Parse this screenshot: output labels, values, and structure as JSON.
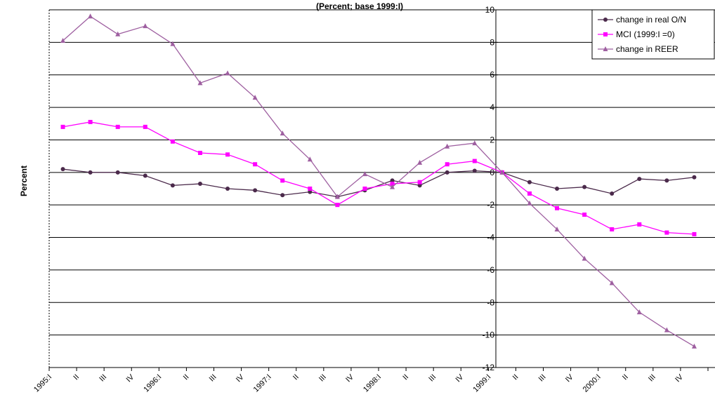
{
  "chart_data": {
    "type": "line",
    "title": "(Percent; base 1999:I)",
    "xlabel": "",
    "ylabel": "Percent",
    "ylim": [
      -12,
      10
    ],
    "yticks": [
      -12,
      -10,
      -8,
      -6,
      -4,
      -2,
      0,
      2,
      4,
      6,
      8,
      10
    ],
    "grid": true,
    "legend_position": "top-right",
    "categories": [
      "1995:I",
      "II",
      "III",
      "IV",
      "1996:I",
      "II",
      "III",
      "IV",
      "1997:I",
      "II",
      "III",
      "IV",
      "1998:I",
      "II",
      "III",
      "IV",
      "1999:I",
      "II",
      "III",
      "IV",
      "2000:I",
      "II",
      "III",
      "IV"
    ],
    "series": [
      {
        "name": "change in real O/N",
        "color": "#4b2a4b",
        "marker": "diamond",
        "values": [
          0.2,
          0.0,
          0.0,
          -0.2,
          -0.8,
          -0.7,
          -1.0,
          -1.1,
          -1.4,
          -1.2,
          -1.5,
          -1.1,
          -0.5,
          -0.8,
          0.0,
          0.1,
          0.0,
          -0.6,
          -1.0,
          -0.9,
          -1.3,
          -0.4,
          -0.5,
          -0.3
        ]
      },
      {
        "name": "MCI (1999:I =0)",
        "color": "#ff00ff",
        "marker": "square",
        "values": [
          2.8,
          3.1,
          2.8,
          2.8,
          1.9,
          1.2,
          1.1,
          0.5,
          -0.5,
          -1.0,
          -2.0,
          -1.0,
          -0.7,
          -0.6,
          0.5,
          0.7,
          0.0,
          -1.3,
          -2.2,
          -2.6,
          -3.5,
          -3.2,
          -3.7,
          -3.8
        ]
      },
      {
        "name": "change in REER",
        "color": "#9e5fa0",
        "marker": "triangle",
        "values": [
          8.1,
          9.6,
          8.5,
          9.0,
          7.9,
          5.5,
          6.1,
          4.6,
          2.4,
          0.8,
          -1.5,
          -0.1,
          -0.9,
          0.6,
          1.6,
          1.8,
          0.0,
          -1.9,
          -3.5,
          -5.3,
          -6.8,
          -8.6,
          -9.7,
          -10.7
        ]
      }
    ]
  }
}
